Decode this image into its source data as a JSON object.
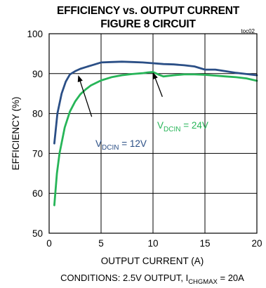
{
  "chart_data": {
    "type": "line",
    "title": "EFFICIENCY vs. OUTPUT CURRENT",
    "subtitle": "FIGURE 8 CIRCUIT",
    "code": "toc02",
    "xlabel": "OUTPUT CURRENT (A)",
    "ylabel": "EFFICIENCY (%)",
    "xlim": [
      0,
      20
    ],
    "ylim": [
      50,
      100
    ],
    "xticks": [
      0,
      5,
      10,
      15,
      20
    ],
    "yticks": [
      50,
      60,
      70,
      80,
      90,
      100
    ],
    "grid": true,
    "conditions": {
      "prefix": "CONDITIONS: 2.5V OUTPUT, I",
      "sub": "CHGMAX",
      "suffix": " = 20A"
    },
    "series": [
      {
        "color": "#2b4f86",
        "annotation": {
          "prefix": "V",
          "sub": "DCIN",
          "suffix": " = 12V"
        },
        "x": [
          0.5,
          0.8,
          1.2,
          1.6,
          2.0,
          2.5,
          3.0,
          3.5,
          4.0,
          4.5,
          5.0,
          6.0,
          7.0,
          8.0,
          9.0,
          10.0,
          11.0,
          12.0,
          13.0,
          14.0,
          15.0,
          16.0,
          17.0,
          18.0,
          19.0,
          20.0
        ],
        "y": [
          72.5,
          80.0,
          85.0,
          88.0,
          89.8,
          90.6,
          91.2,
          91.6,
          92.0,
          92.4,
          92.8,
          92.9,
          93.0,
          92.9,
          92.8,
          92.6,
          92.4,
          92.3,
          92.1,
          91.8,
          91.0,
          91.0,
          90.6,
          90.2,
          89.9,
          89.6
        ]
      },
      {
        "color": "#27b558",
        "annotation": {
          "prefix": "V",
          "sub": "DCIN",
          "suffix": " = 24V"
        },
        "x": [
          0.5,
          0.75,
          1.0,
          1.5,
          2.0,
          2.5,
          3.0,
          3.5,
          4.0,
          5.0,
          6.0,
          7.0,
          8.0,
          9.0,
          9.5,
          10.0,
          10.5,
          11.0,
          12.0,
          13.0,
          14.0,
          15.0,
          16.0,
          17.0,
          18.0,
          19.0,
          20.0
        ],
        "y": [
          57.0,
          65.0,
          70.0,
          76.5,
          80.5,
          83.0,
          84.8,
          86.0,
          87.0,
          88.3,
          89.1,
          89.6,
          89.9,
          90.1,
          90.3,
          90.4,
          89.8,
          89.3,
          89.6,
          89.8,
          89.8,
          89.7,
          89.5,
          89.3,
          89.1,
          88.8,
          88.2
        ]
      }
    ],
    "arrows": [
      {
        "from": [
          4.1,
          79.2
        ],
        "to": [
          2.8,
          89.6
        ]
      },
      {
        "from": [
          10.9,
          84.2
        ],
        "to": [
          10.0,
          90.3
        ]
      }
    ]
  }
}
